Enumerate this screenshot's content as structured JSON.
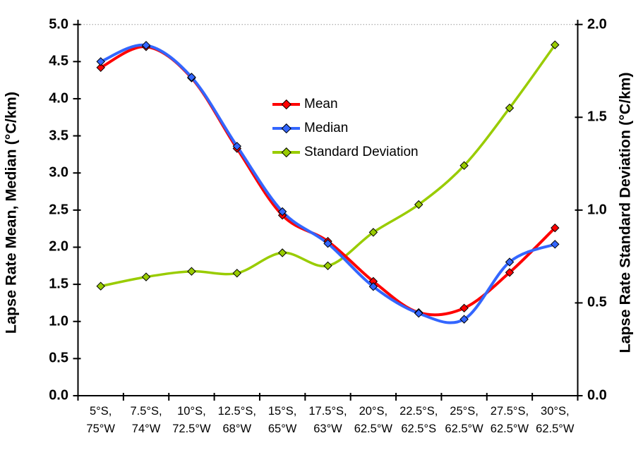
{
  "chart_data": {
    "type": "line",
    "smooth_lines": true,
    "marker": "diamond",
    "background": "#ffffff",
    "gridline": {
      "at_left_value": 5.0,
      "style": "dotted",
      "color": "#999999"
    },
    "categories": [
      [
        "5°S,",
        "75°W"
      ],
      [
        "7.5°S,",
        "74°W"
      ],
      [
        "10°S,",
        "72.5°W"
      ],
      [
        "12.5°S,",
        "68°W"
      ],
      [
        "15°S,",
        "65°W"
      ],
      [
        "17.5°S,",
        "63°W"
      ],
      [
        "20°S,",
        "62.5°W"
      ],
      [
        "22.5°S,",
        "62.5°S"
      ],
      [
        "25°S,",
        "62.5°W"
      ],
      [
        "27.5°S,",
        "62.5°W"
      ],
      [
        "30°S,",
        "62.5°W"
      ]
    ],
    "left_axis": {
      "title": "Lapse Rate Mean, Median (°C/km)",
      "min": 0.0,
      "max": 5.0,
      "step": 0.5,
      "ticks": [
        "5.0",
        "4.5",
        "4.0",
        "3.5",
        "3.0",
        "2.5",
        "2.0",
        "1.5",
        "1.0",
        "0.5",
        "0.0"
      ]
    },
    "right_axis": {
      "title": "Lapse Rate Standard Deviation (°C/km)",
      "min": 0.0,
      "max": 2.0,
      "step": 0.5,
      "ticks": [
        "2.0",
        "1.5",
        "1.0",
        "0.5",
        "0.0"
      ]
    },
    "series": [
      {
        "name": "Mean",
        "axis": "left",
        "color": "#FF0000",
        "values": [
          4.42,
          4.7,
          4.28,
          3.33,
          2.43,
          2.08,
          1.54,
          1.12,
          1.18,
          1.66,
          2.26
        ]
      },
      {
        "name": "Median",
        "axis": "left",
        "color": "#3366FF",
        "values": [
          4.5,
          4.72,
          4.29,
          3.36,
          2.48,
          2.05,
          1.47,
          1.11,
          1.03,
          1.8,
          2.04
        ]
      },
      {
        "name": "Standard Deviation",
        "axis": "right",
        "color": "#99CC00",
        "values": [
          0.59,
          0.64,
          0.67,
          0.66,
          0.77,
          0.7,
          0.88,
          1.03,
          1.24,
          1.55,
          1.89
        ]
      }
    ],
    "legend_position": "inside-plot upper-middle-left, no border"
  }
}
